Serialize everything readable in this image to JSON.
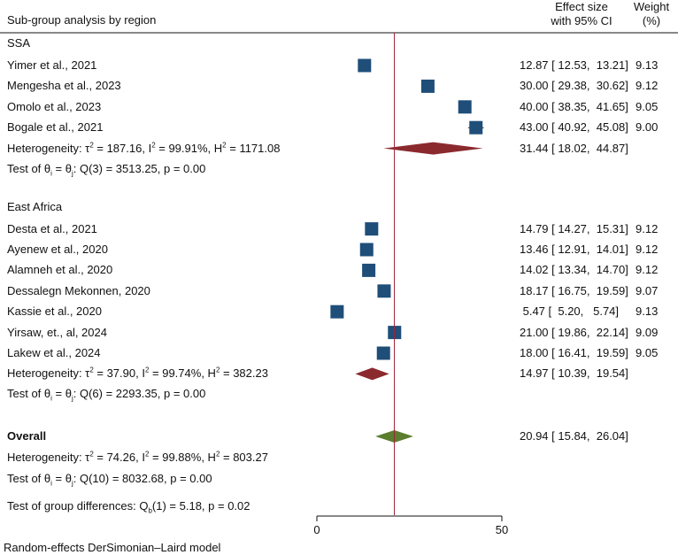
{
  "chart_data": {
    "type": "forest",
    "title": "Sub-group analysis by region",
    "col_effect_line1": "Effect size",
    "col_effect_line2": "with 95% CI",
    "col_weight_line1": "Weight",
    "col_weight_line2": "(%)",
    "xlim": [
      0,
      50
    ],
    "xticks": [
      "0",
      "50"
    ],
    "overall_line": 20.94,
    "groups": [
      {
        "name": "SSA",
        "studies": [
          {
            "label": "Yimer et al., 2021",
            "es": 12.87,
            "lo": 12.53,
            "hi": 13.21,
            "ci_text": "12.87 [ 12.53,  13.21]",
            "weight": "9.13"
          },
          {
            "label": "Mengesha et al., 2023",
            "es": 30.0,
            "lo": 29.38,
            "hi": 30.62,
            "ci_text": "30.00 [ 29.38,  30.62]",
            "weight": "9.12"
          },
          {
            "label": "Omolo et al., 2023",
            "es": 40.0,
            "lo": 38.35,
            "hi": 41.65,
            "ci_text": "40.00 [ 38.35,  41.65]",
            "weight": "9.05"
          },
          {
            "label": "Bogale et al., 2021",
            "es": 43.0,
            "lo": 40.92,
            "hi": 45.08,
            "ci_text": "43.00 [ 40.92,  45.08]",
            "weight": "9.00"
          }
        ],
        "pooled": {
          "es": 31.44,
          "lo": 18.02,
          "hi": 44.87,
          "ci_text": "31.44 [ 18.02,  44.87]"
        },
        "het_prefix": "Heterogeneity: τ",
        "tau2": "187.16",
        "i2": "99.91%",
        "h2": "1171.08",
        "test_q": "Q(3) = 3513.25, p = 0.00"
      },
      {
        "name": "East Africa",
        "studies": [
          {
            "label": "Desta et al., 2021",
            "es": 14.79,
            "lo": 14.27,
            "hi": 15.31,
            "ci_text": "14.79 [ 14.27,  15.31]",
            "weight": "9.12"
          },
          {
            "label": "Ayenew et al., 2020",
            "es": 13.46,
            "lo": 12.91,
            "hi": 14.01,
            "ci_text": "13.46 [ 12.91,  14.01]",
            "weight": "9.12"
          },
          {
            "label": "Alamneh et al., 2020",
            "es": 14.02,
            "lo": 13.34,
            "hi": 14.7,
            "ci_text": "14.02 [ 13.34,  14.70]",
            "weight": "9.12"
          },
          {
            "label": "Dessalegn Mekonnen, 2020",
            "es": 18.17,
            "lo": 16.75,
            "hi": 19.59,
            "ci_text": "18.17 [ 16.75,  19.59]",
            "weight": "9.07"
          },
          {
            "label": "Kassie et al., 2020",
            "es": 5.47,
            "lo": 5.2,
            "hi": 5.74,
            "ci_text": " 5.47 [  5.20,   5.74]",
            "weight": "9.13"
          },
          {
            "label": "Yirsaw, et., al, 2024",
            "es": 21.0,
            "lo": 19.86,
            "hi": 22.14,
            "ci_text": "21.00 [ 19.86,  22.14]",
            "weight": "9.09"
          },
          {
            "label": "Lakew et al., 2024",
            "es": 18.0,
            "lo": 16.41,
            "hi": 19.59,
            "ci_text": "18.00 [ 16.41,  19.59]",
            "weight": "9.05"
          }
        ],
        "pooled": {
          "es": 14.97,
          "lo": 10.39,
          "hi": 19.54,
          "ci_text": "14.97 [ 10.39,  19.54]"
        },
        "het_prefix": "Heterogeneity: τ",
        "tau2": "37.90",
        "i2": "99.74%",
        "h2": "382.23",
        "test_q": "Q(6) = 2293.35, p = 0.00"
      }
    ],
    "overall": {
      "label": "Overall",
      "es": 20.94,
      "lo": 15.84,
      "hi": 26.04,
      "ci_text": "20.94 [ 15.84,  26.04]",
      "tau2": "74.26",
      "i2": "99.88%",
      "h2": "803.27",
      "test_q": "Q(10) = 8032.68, p = 0.00"
    },
    "group_diff": "Test of group differences: Q",
    "group_diff_sub": "b",
    "group_diff_rest": "(1) = 5.18, p = 0.02",
    "footer": "Random-effects DerSimonian–Laird model",
    "colors": {
      "square": "#1f4e79",
      "subgroup_diamond": "#8b2a2e",
      "overall_diamond": "#5a7d2e",
      "ref_line": "#a0253a"
    }
  }
}
